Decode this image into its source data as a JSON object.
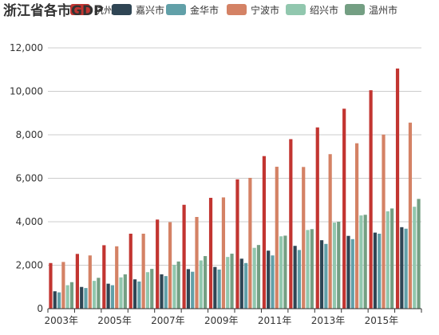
{
  "chart_data": {
    "type": "bar",
    "title": "浙江省各市GDP",
    "xlabel": "",
    "ylabel": "",
    "ylim": [
      0,
      12000
    ],
    "yticks": [
      0,
      2000,
      4000,
      6000,
      8000,
      10000,
      12000
    ],
    "ytick_labels": [
      "0",
      "2,000",
      "4,000",
      "6,000",
      "8,000",
      "10,000",
      "12,000"
    ],
    "grid": true,
    "legend_position": "top",
    "categories": [
      "2003年",
      "2004年",
      "2005年",
      "2006年",
      "2007年",
      "2008年",
      "2009年",
      "2010年",
      "2011年",
      "2012年",
      "2013年",
      "2014年",
      "2015年",
      "2016年"
    ],
    "xtick_labels": [
      "2003年",
      "",
      "2005年",
      "",
      "2007年",
      "",
      "2009年",
      "",
      "2011年",
      "",
      "2013年",
      "",
      "2015年",
      ""
    ],
    "series": [
      {
        "name": "杭州市",
        "color": "#c23531",
        "values": [
          2100,
          2520,
          2920,
          3450,
          4100,
          4780,
          5100,
          5950,
          7020,
          7800,
          8340,
          9200,
          10050,
          11050
        ]
      },
      {
        "name": "嘉兴市",
        "color": "#2f4554",
        "values": [
          800,
          1000,
          1150,
          1350,
          1580,
          1820,
          1920,
          2300,
          2670,
          2890,
          3150,
          3350,
          3500,
          3750
        ]
      },
      {
        "name": "金华市",
        "color": "#61a0a8",
        "values": [
          750,
          950,
          1080,
          1250,
          1500,
          1700,
          1800,
          2100,
          2450,
          2700,
          2980,
          3200,
          3450,
          3680
        ]
      },
      {
        "name": "宁波市",
        "color": "#d48265",
        "values": [
          2150,
          2450,
          2870,
          3450,
          3980,
          4220,
          5120,
          6020,
          6530,
          6520,
          7110,
          7610,
          8010,
          8560
        ]
      },
      {
        "name": "绍兴市",
        "color": "#91c7ae",
        "values": [
          1080,
          1280,
          1440,
          1680,
          2020,
          2220,
          2380,
          2800,
          3330,
          3620,
          3960,
          4290,
          4480,
          4690
        ]
      },
      {
        "name": "温州市",
        "color": "#749f83",
        "values": [
          1220,
          1420,
          1580,
          1830,
          2170,
          2420,
          2530,
          2930,
          3360,
          3660,
          4000,
          4320,
          4610,
          5050
        ]
      }
    ]
  }
}
